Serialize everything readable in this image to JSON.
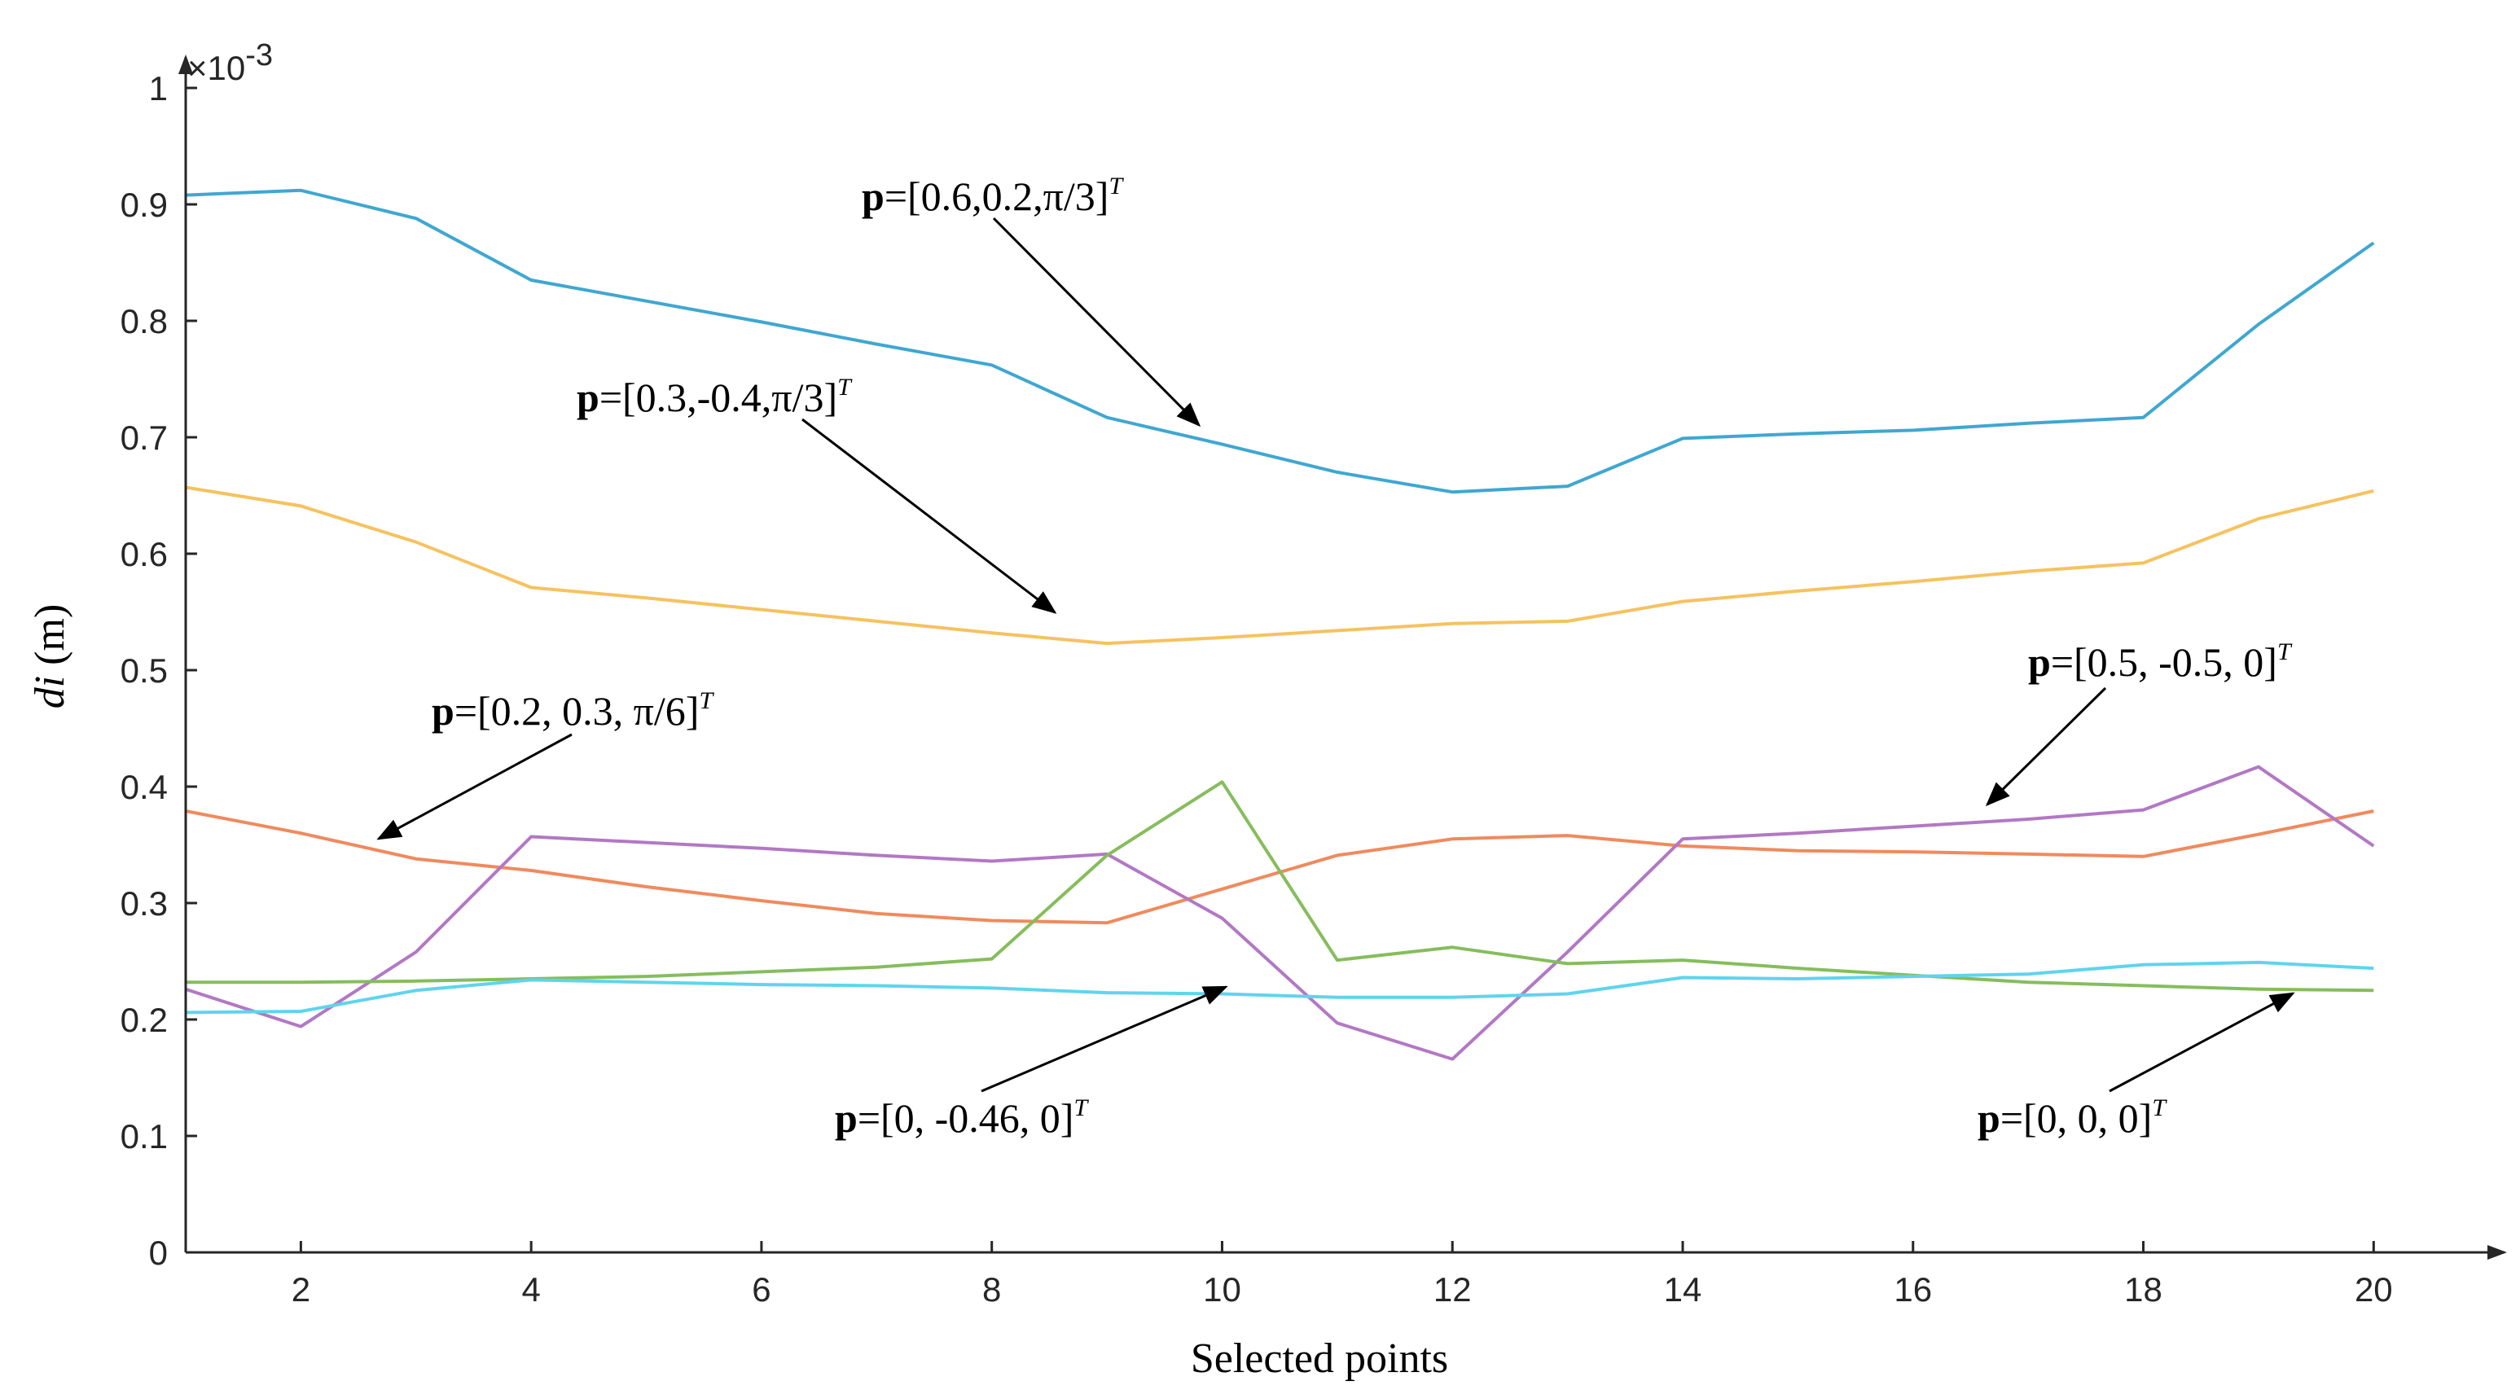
{
  "chart_data": {
    "type": "line",
    "xlabel": "Selected points",
    "ylabel_italic": "di",
    "ylabel_unit": " (m)",
    "y_multiplier": "×10",
    "y_multiplier_exp": "-3",
    "xlim": [
      1,
      20.5
    ],
    "ylim": [
      0,
      1
    ],
    "grid": false,
    "x_ticks": [
      2,
      4,
      6,
      8,
      10,
      12,
      14,
      16,
      18,
      20
    ],
    "y_ticks": [
      0,
      0.1,
      0.2,
      0.3,
      0.4,
      0.5,
      0.6,
      0.7,
      0.8,
      0.9,
      1
    ],
    "x_tick_labels": [
      "2",
      "4",
      "6",
      "8",
      "10",
      "12",
      "14",
      "16",
      "18",
      "20"
    ],
    "y_tick_labels": [
      "0",
      "0.1",
      "0.2",
      "0.3",
      "0.4",
      "0.5",
      "0.6",
      "0.7",
      "0.8",
      "0.9",
      "1"
    ],
    "x": [
      1,
      2,
      3,
      4,
      5,
      6,
      7,
      8,
      9,
      10,
      11,
      12,
      13,
      14,
      15,
      16,
      17,
      18,
      19,
      20
    ],
    "series": [
      {
        "color": "#3fa7d1",
        "values": [
          0.908,
          0.912,
          0.888,
          0.835,
          0.817,
          0.799,
          0.78,
          0.762,
          0.717,
          0.694,
          0.67,
          0.653,
          0.658,
          0.699,
          0.703,
          0.706,
          0.712,
          0.717,
          0.797,
          0.867
        ]
      },
      {
        "color": "#f6c25f",
        "values": [
          0.657,
          0.641,
          0.61,
          0.571,
          0.562,
          0.552,
          0.542,
          0.532,
          0.523,
          0.528,
          0.534,
          0.54,
          0.542,
          0.559,
          0.568,
          0.576,
          0.585,
          0.592,
          0.63,
          0.654
        ]
      },
      {
        "color": "#f08a5d",
        "values": [
          0.379,
          0.36,
          0.338,
          0.328,
          0.314,
          0.302,
          0.291,
          0.285,
          0.283,
          0.312,
          0.341,
          0.355,
          0.358,
          0.349,
          0.345,
          0.344,
          0.342,
          0.34,
          0.359,
          0.379
        ]
      },
      {
        "color": "#b278c4",
        "values": [
          0.226,
          0.194,
          0.258,
          0.357,
          0.352,
          0.347,
          0.341,
          0.336,
          0.342,
          0.287,
          0.197,
          0.166,
          0.258,
          0.355,
          0.36,
          0.366,
          0.372,
          0.38,
          0.417,
          0.349
        ]
      },
      {
        "color": "#86bd5c",
        "values": [
          0.232,
          0.232,
          0.233,
          0.235,
          0.237,
          0.241,
          0.245,
          0.252,
          0.341,
          0.404,
          0.251,
          0.262,
          0.248,
          0.251,
          0.244,
          0.238,
          0.232,
          0.229,
          0.226,
          0.225
        ]
      },
      {
        "color": "#5fd4ee",
        "values": [
          0.206,
          0.207,
          0.225,
          0.234,
          0.232,
          0.23,
          0.229,
          0.227,
          0.223,
          0.222,
          0.219,
          0.219,
          0.222,
          0.236,
          0.235,
          0.237,
          0.239,
          0.247,
          0.249,
          0.244
        ]
      }
    ],
    "annotations": [
      {
        "bold": "p",
        "text": "=[0.6,0.2,π/3]",
        "sup": "T"
      },
      {
        "bold": "p",
        "text": "=[0.3,-0.4,π/3]",
        "sup": "T"
      },
      {
        "bold": "p",
        "text": "=[0.2, 0.3, π/6]",
        "sup": "T"
      },
      {
        "bold": "p",
        "text": "=[0.5, -0.5, 0]",
        "sup": "T"
      },
      {
        "bold": "p",
        "text": "=[0, -0.46, 0]",
        "sup": "T"
      },
      {
        "bold": "p",
        "text": "=[0, 0, 0]",
        "sup": "T"
      }
    ]
  }
}
